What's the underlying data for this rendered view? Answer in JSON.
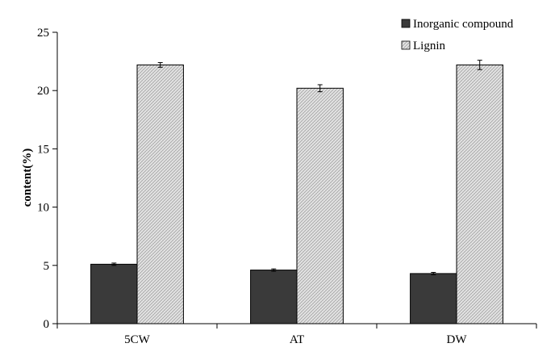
{
  "chart_data": {
    "type": "bar",
    "title": "",
    "xlabel": "",
    "ylabel": "content(%)",
    "ylim": [
      0,
      25
    ],
    "yticks": [
      0,
      5,
      10,
      15,
      20,
      25
    ],
    "categories": [
      "5CW",
      "AT",
      "DW"
    ],
    "legend_position": "top-right",
    "grid": false,
    "series": [
      {
        "name": "Inorganic compound",
        "values": [
          5.1,
          4.6,
          4.3
        ],
        "errors": [
          0.1,
          0.1,
          0.1
        ],
        "color": "#3a3a3a"
      },
      {
        "name": "Lignin",
        "values": [
          22.2,
          20.2,
          22.2
        ],
        "errors": [
          0.2,
          0.3,
          0.4
        ],
        "color": "#d9d9d9"
      }
    ]
  }
}
